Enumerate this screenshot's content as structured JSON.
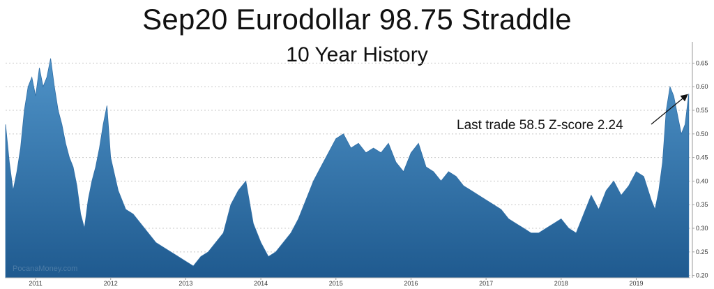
{
  "chart_data": {
    "type": "area",
    "title": "Sep20 Eurodollar 98.75 Straddle",
    "subtitle": "10 Year History",
    "xlabel": "",
    "ylabel": "",
    "x_range": [
      2010.6,
      2019.72
    ],
    "ylim": [
      0.195,
      0.695
    ],
    "y_ticks": [
      0.2,
      0.25,
      0.3,
      0.35,
      0.4,
      0.45,
      0.5,
      0.55,
      0.6,
      0.65
    ],
    "y_tick_labels": [
      "0.20",
      "0.25",
      "0.30",
      "0.35",
      "0.40",
      "0.45",
      "0.50",
      "0.55",
      "0.60",
      "0.65"
    ],
    "x_ticks": [
      2011,
      2012,
      2013,
      2014,
      2015,
      2016,
      2017,
      2018,
      2019
    ],
    "x_tick_labels": [
      "2011",
      "2012",
      "2013",
      "2014",
      "2015",
      "2016",
      "2017",
      "2018",
      "2019"
    ],
    "grid": "horizontal-dotted",
    "y_axis_side": "right",
    "fill_color_top": "#4f93c8",
    "fill_color_bottom": "#1f5a8f",
    "series": [
      {
        "x": [
          2010.6,
          2010.65,
          2010.7,
          2010.75,
          2010.8,
          2010.85,
          2010.9,
          2010.95,
          2011.0,
          2011.05,
          2011.1,
          2011.15,
          2011.2,
          2011.25,
          2011.3,
          2011.35,
          2011.4,
          2011.45,
          2011.5,
          2011.55,
          2011.6,
          2011.65,
          2011.7,
          2011.75,
          2011.8,
          2011.85,
          2011.9,
          2011.95,
          2012.0,
          2012.1,
          2012.2,
          2012.3,
          2012.4,
          2012.5,
          2012.6,
          2012.7,
          2012.8,
          2012.9,
          2013.0,
          2013.1,
          2013.2,
          2013.3,
          2013.4,
          2013.5,
          2013.6,
          2013.7,
          2013.8,
          2013.9,
          2014.0,
          2014.1,
          2014.2,
          2014.3,
          2014.4,
          2014.5,
          2014.6,
          2014.7,
          2014.8,
          2014.9,
          2015.0,
          2015.1,
          2015.2,
          2015.3,
          2015.4,
          2015.5,
          2015.6,
          2015.7,
          2015.8,
          2015.9,
          2016.0,
          2016.1,
          2016.2,
          2016.3,
          2016.4,
          2016.5,
          2016.6,
          2016.7,
          2016.8,
          2016.9,
          2017.0,
          2017.1,
          2017.2,
          2017.3,
          2017.4,
          2017.5,
          2017.6,
          2017.7,
          2017.8,
          2017.9,
          2018.0,
          2018.1,
          2018.2,
          2018.3,
          2018.4,
          2018.5,
          2018.6,
          2018.7,
          2018.8,
          2018.9,
          2019.0,
          2019.1,
          2019.2,
          2019.25,
          2019.3,
          2019.35,
          2019.4,
          2019.45,
          2019.5,
          2019.55,
          2019.6,
          2019.65,
          2019.7
        ],
        "y": [
          0.52,
          0.44,
          0.38,
          0.42,
          0.47,
          0.55,
          0.6,
          0.62,
          0.58,
          0.64,
          0.6,
          0.62,
          0.66,
          0.6,
          0.55,
          0.52,
          0.48,
          0.45,
          0.43,
          0.39,
          0.33,
          0.3,
          0.36,
          0.4,
          0.43,
          0.47,
          0.52,
          0.56,
          0.45,
          0.38,
          0.34,
          0.33,
          0.31,
          0.29,
          0.27,
          0.26,
          0.25,
          0.24,
          0.23,
          0.22,
          0.24,
          0.25,
          0.27,
          0.29,
          0.35,
          0.38,
          0.4,
          0.31,
          0.27,
          0.24,
          0.25,
          0.27,
          0.29,
          0.32,
          0.36,
          0.4,
          0.43,
          0.46,
          0.49,
          0.5,
          0.47,
          0.48,
          0.46,
          0.47,
          0.46,
          0.48,
          0.44,
          0.42,
          0.46,
          0.48,
          0.43,
          0.42,
          0.4,
          0.42,
          0.41,
          0.39,
          0.38,
          0.37,
          0.36,
          0.35,
          0.34,
          0.32,
          0.31,
          0.3,
          0.29,
          0.29,
          0.3,
          0.31,
          0.32,
          0.3,
          0.29,
          0.33,
          0.37,
          0.34,
          0.38,
          0.4,
          0.37,
          0.39,
          0.42,
          0.41,
          0.36,
          0.34,
          0.38,
          0.44,
          0.55,
          0.6,
          0.58,
          0.54,
          0.5,
          0.52,
          0.585
        ]
      }
    ],
    "annotation": {
      "text": "Last trade 58.5 Z-score 2.24",
      "x": 2019.7,
      "y": 0.585
    },
    "watermark": "PocanaMoney.com"
  }
}
